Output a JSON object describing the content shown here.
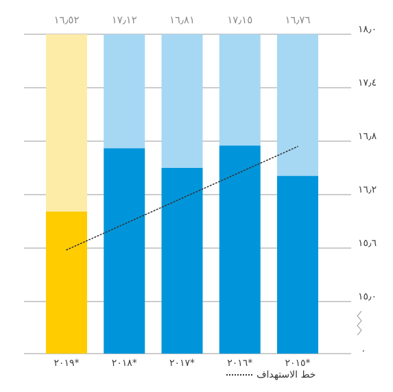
{
  "chart_data": {
    "type": "bar",
    "categories": [
      "٢٠١٩*",
      "٢٠١٨*",
      "٢٠١٧*",
      "٢٠١٦*",
      "٢٠١٥*"
    ],
    "series": [
      {
        "values": [
          16.01,
          16.72,
          16.5,
          16.75,
          16.41
        ]
      },
      {
        "values": [
          16.52,
          17.12,
          16.81,
          17.15,
          16.76
        ]
      }
    ],
    "value_labels": [
      "١٦٫٥٢",
      "١٧٫١٢",
      "١٦٫٨١",
      "١٧٫١٥",
      "١٦٫٧٦"
    ],
    "target_line": {
      "label": "خط الاستهداف",
      "start": {
        "category": "٢٠١٩*",
        "value": 15.58
      },
      "end": {
        "category": "٢٠١٥*",
        "value": 16.74
      },
      "style": "dotted"
    },
    "yticks": [
      {
        "value": 15.0,
        "label": "١٥٫٠"
      },
      {
        "value": 15.6,
        "label": "١٥٫٦"
      },
      {
        "value": 16.2,
        "label": "١٦٫٢"
      },
      {
        "value": 16.8,
        "label": "١٦٫٨"
      },
      {
        "value": 17.4,
        "label": "١٧٫٤"
      },
      {
        "value": 18.0,
        "label": "١٨٫٠"
      }
    ],
    "y_zero_label": "٠",
    "ylim": [
      15.0,
      18.0
    ],
    "axis_break": true,
    "y_axis_side": "right",
    "grid": true,
    "legend_position": "bottom-right",
    "colors": {
      "highlight_dark": "#FFCC00",
      "highlight_light": "#FDEBA8",
      "bar_dark": "#0095DA",
      "bar_light": "#A6D8F4",
      "grid": "#9a9a9a",
      "text": "#3d3d3d",
      "value_label": "#8a8a8a",
      "target_line": "#333333"
    }
  }
}
